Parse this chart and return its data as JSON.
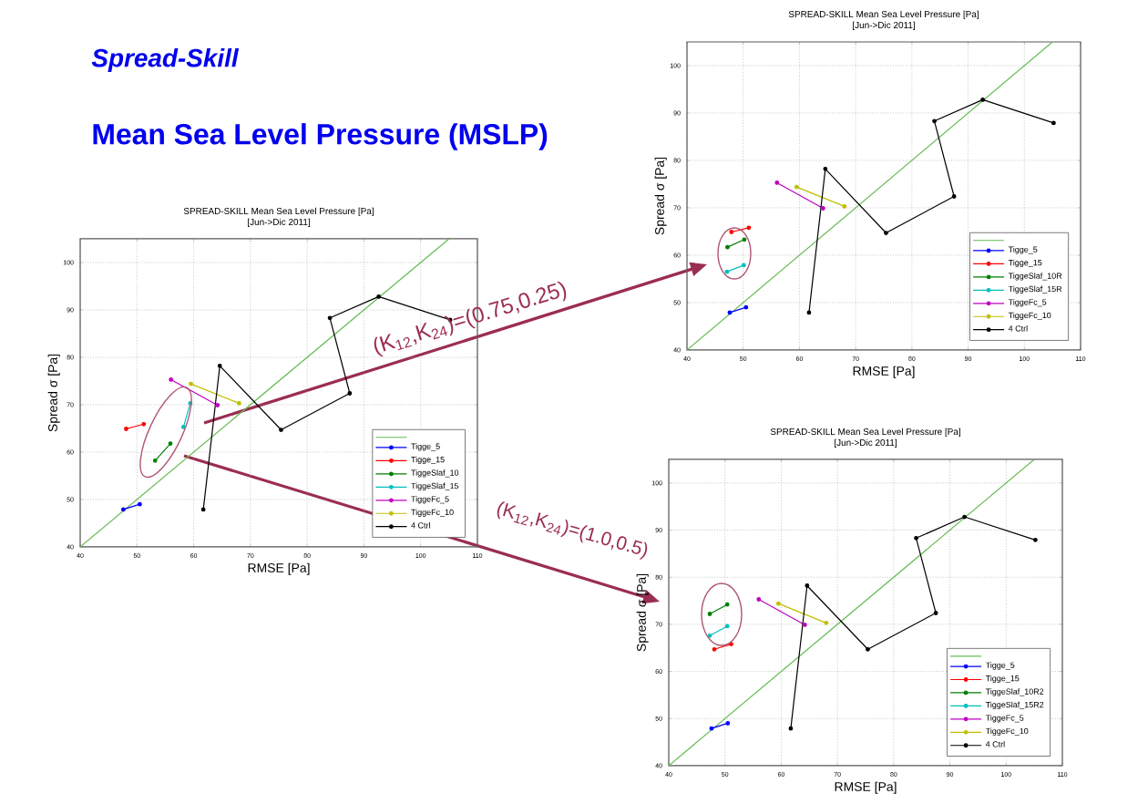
{
  "chart_data": [
    {
      "type": "line",
      "title": "SPREAD-SKILL Mean Sea Level Pressure [Pa]",
      "subtitle": "[Jun->Dic 2011]",
      "xlabel": "RMSE [Pa]",
      "ylabel": "Spread σ [Pa]",
      "xlim": [
        40,
        110
      ],
      "xticks": [
        40,
        50,
        60,
        70,
        80,
        90,
        100,
        110
      ],
      "ylim": [
        40,
        105
      ],
      "yticks": [
        40,
        50,
        60,
        70,
        80,
        90,
        100
      ],
      "grid": true,
      "legend": "bottom right",
      "marker": "circle",
      "annotations": [
        "*Spread-Skill*",
        "Mean Sea Level Pressure (MSLP)"
      ],
      "series": [
        {
          "color": "#66bb55",
          "marker": "none",
          "x": [
            40,
            105
          ],
          "values": [
            40,
            105
          ]
        },
        {
          "name": "Tigge_5",
          "color": "#0000ff",
          "x": [
            47.6,
            50.5
          ],
          "values": [
            47.9,
            49.0
          ]
        },
        {
          "name": "Tigge_15",
          "color": "#ff0000",
          "x": [
            48.1,
            51.2
          ],
          "values": [
            64.9,
            65.9
          ]
        },
        {
          "name": "TiggeSlaf_10",
          "color": "#007f00",
          "x": [
            53.2,
            55.9
          ],
          "values": [
            58.2,
            61.8
          ]
        },
        {
          "name": "TiggeSlaf_15",
          "color": "#00bfbf",
          "x": [
            58.2,
            59.4
          ],
          "values": [
            65.3,
            70.3
          ]
        },
        {
          "name": "TiggeFc_5",
          "color": "#bf00bf",
          "x": [
            56.0,
            64.2
          ],
          "values": [
            75.3,
            69.9
          ]
        },
        {
          "name": "TiggeFc_10",
          "color": "#bfbf00",
          "x": [
            59.5,
            68.0
          ],
          "values": [
            74.4,
            70.3
          ]
        },
        {
          "name": "4 Ctrl",
          "color": "#000000",
          "x": [
            61.7,
            64.6,
            75.4,
            87.5,
            84.0,
            92.6,
            105.2
          ],
          "values": [
            47.9,
            78.2,
            64.7,
            72.4,
            88.3,
            92.8,
            87.9
          ]
        }
      ]
    },
    {
      "type": "line",
      "title": "SPREAD-SKILL Mean Sea Level Pressure [Pa]",
      "subtitle": "[Jun->Dic 2011]",
      "xlabel": "RMSE [Pa]",
      "ylabel": "Spread σ [Pa]",
      "xlim": [
        40,
        110
      ],
      "xticks": [
        40,
        50,
        60,
        70,
        80,
        90,
        100,
        110
      ],
      "ylim": [
        40,
        105
      ],
      "yticks": [
        40,
        50,
        60,
        70,
        80,
        90,
        100
      ],
      "grid": true,
      "legend": "bottom right",
      "marker": "circle",
      "annotations": [
        "(K$_{12}$,K$_{24}$)=(0.75,0.25)"
      ],
      "series": [
        {
          "color": "#66bb55",
          "marker": "none",
          "x": [
            40,
            105
          ],
          "values": [
            40,
            105
          ]
        },
        {
          "name": "Tigge_5",
          "color": "#0000ff",
          "x": [
            47.6,
            50.5
          ],
          "values": [
            47.9,
            49.0
          ]
        },
        {
          "name": "Tigge_15",
          "color": "#ff0000",
          "x": [
            47.9,
            51.0
          ],
          "values": [
            64.9,
            65.8
          ]
        },
        {
          "name": "TiggeSlaf_10R",
          "color": "#007f00",
          "x": [
            47.2,
            50.2
          ],
          "values": [
            61.7,
            63.3
          ]
        },
        {
          "name": "TiggeSlaf_15R",
          "color": "#00bfbf",
          "x": [
            47.1,
            50.1
          ],
          "values": [
            56.5,
            57.9
          ]
        },
        {
          "name": "TiggeFc_5",
          "color": "#bf00bf",
          "x": [
            56.0,
            64.2
          ],
          "values": [
            75.3,
            69.9
          ]
        },
        {
          "name": "TiggeFc_10",
          "color": "#bfbf00",
          "x": [
            59.5,
            68.0
          ],
          "values": [
            74.4,
            70.3
          ]
        },
        {
          "name": "4 Ctrl",
          "color": "#000000",
          "x": [
            61.7,
            64.6,
            75.4,
            87.5,
            84.0,
            92.6,
            105.2
          ],
          "values": [
            47.9,
            78.2,
            64.7,
            72.4,
            88.3,
            92.8,
            87.9
          ]
        }
      ]
    },
    {
      "type": "line",
      "title": "SPREAD-SKILL Mean Sea Level Pressure [Pa]",
      "subtitle": "[Jun->Dic 2011]",
      "xlabel": "RMSE [Pa]",
      "ylabel": "Spread σ [Pa]",
      "xlim": [
        40,
        110
      ],
      "xticks": [
        40,
        50,
        60,
        70,
        80,
        90,
        100,
        110
      ],
      "ylim": [
        40,
        105
      ],
      "yticks": [
        40,
        50,
        60,
        70,
        80,
        90,
        100
      ],
      "grid": true,
      "legend": "bottom right",
      "marker": "circle",
      "annotations": [
        "(K$_{12}$,K$_{24}$)=(1.0,0.5)"
      ],
      "series": [
        {
          "color": "#66bb55",
          "marker": "none",
          "x": [
            40,
            105
          ],
          "values": [
            40,
            105
          ]
        },
        {
          "name": "Tigge_5",
          "color": "#0000ff",
          "x": [
            47.6,
            50.5
          ],
          "values": [
            47.9,
            49.0
          ]
        },
        {
          "name": "Tigge_15",
          "color": "#ff0000",
          "x": [
            48.1,
            51.1
          ],
          "values": [
            64.7,
            65.8
          ]
        },
        {
          "name": "TiggeSlaf_10R2",
          "color": "#007f00",
          "x": [
            47.3,
            50.4
          ],
          "values": [
            72.2,
            74.2
          ]
        },
        {
          "name": "TiggeSlaf_15R2",
          "color": "#00bfbf",
          "x": [
            47.3,
            50.4
          ],
          "values": [
            67.6,
            69.6
          ]
        },
        {
          "name": "TiggeFc_5",
          "color": "#bf00bf",
          "x": [
            56.0,
            64.2
          ],
          "values": [
            75.3,
            69.9
          ]
        },
        {
          "name": "TiggeFc_10",
          "color": "#bfbf00",
          "x": [
            59.5,
            68.0
          ],
          "values": [
            74.4,
            70.3
          ]
        },
        {
          "name": "4 Ctrl",
          "color": "#000000",
          "x": [
            61.7,
            64.6,
            75.4,
            87.5,
            84.0,
            92.6,
            105.2
          ],
          "values": [
            47.9,
            78.2,
            64.7,
            72.4,
            88.3,
            92.8,
            87.9
          ]
        }
      ]
    }
  ]
}
